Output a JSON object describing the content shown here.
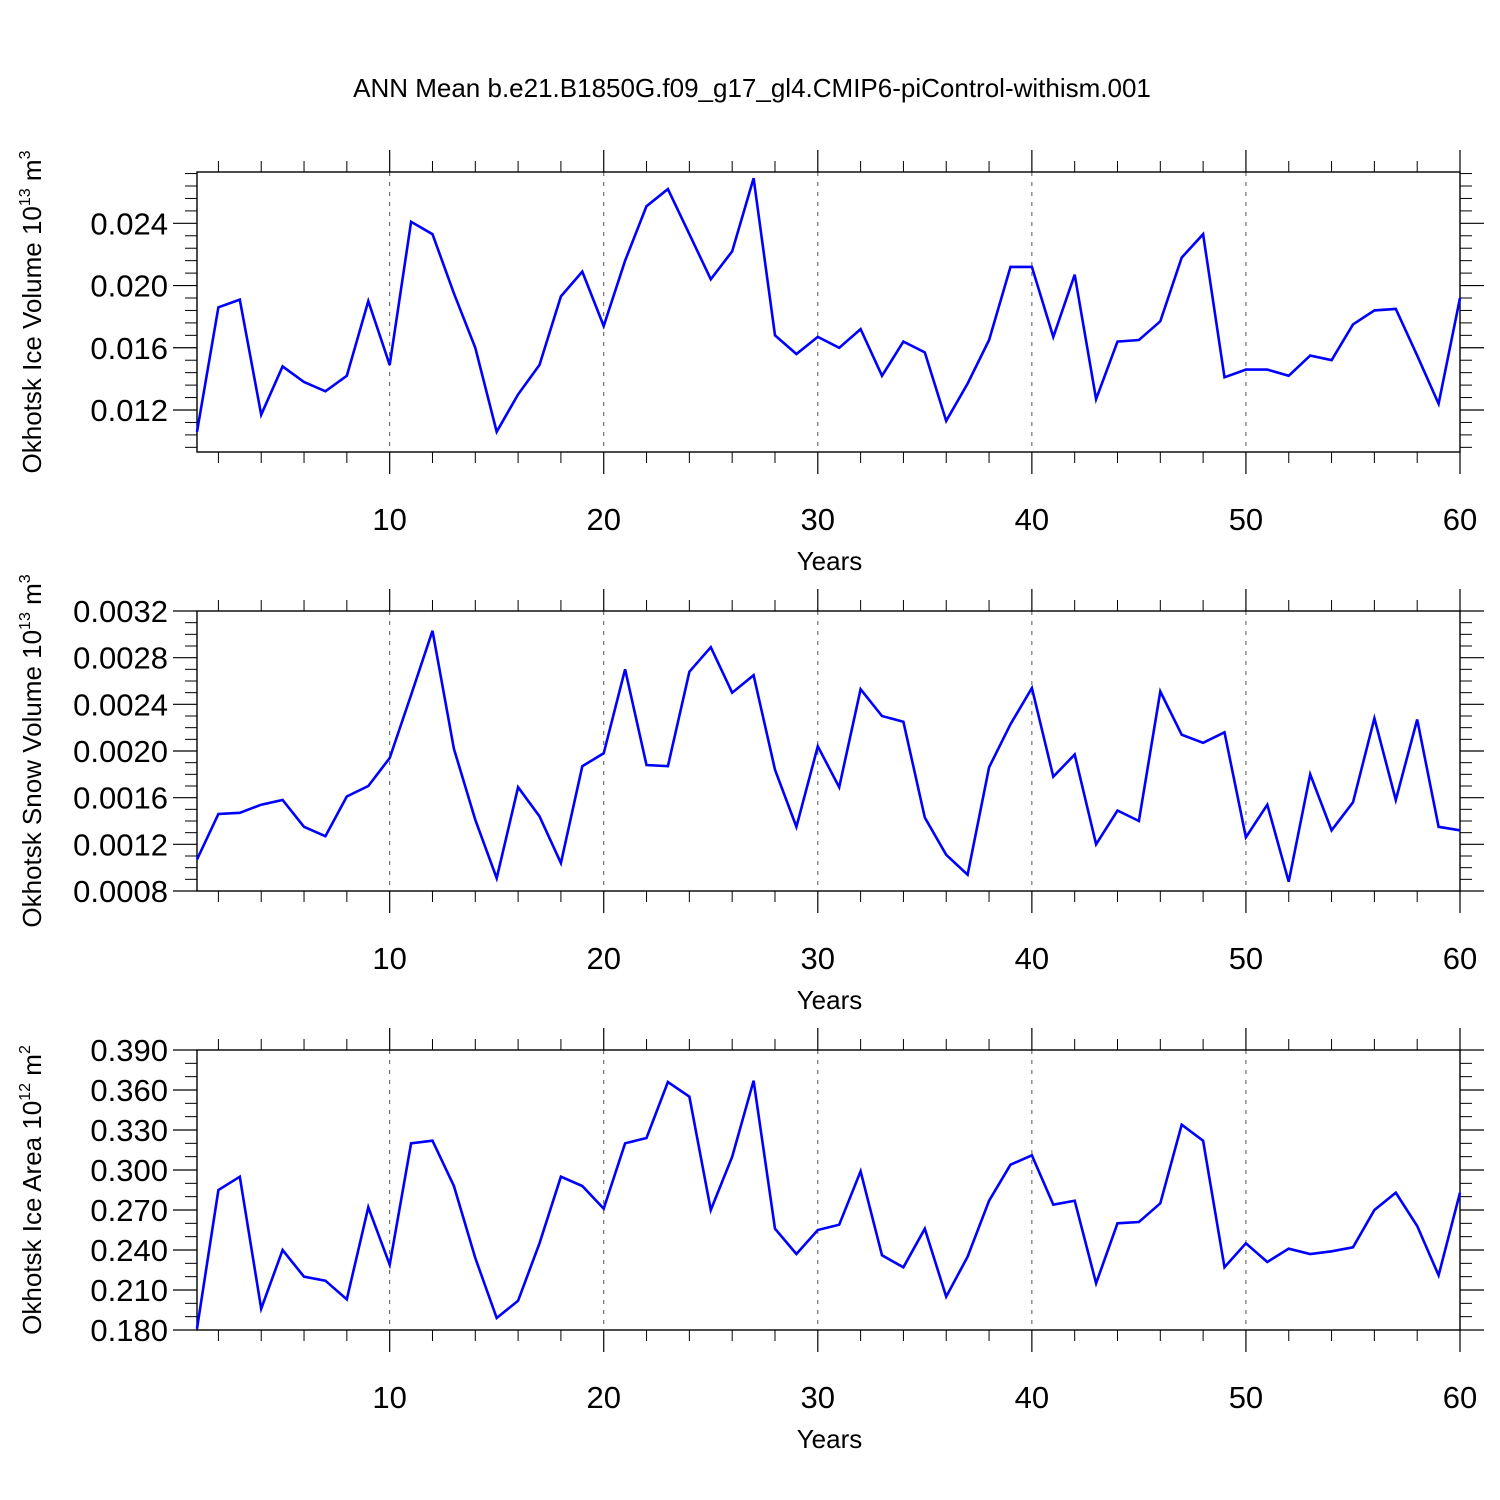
{
  "title": "ANN Mean b.e21.B1850G.f09_g17_gl4.CMIP6-piControl-withism.001",
  "style": {
    "line_color": "#0000ff",
    "axis_color": "#000000",
    "grid_color": "#555555",
    "background": "#ffffff"
  },
  "chart_data": [
    {
      "type": "line",
      "ylabel": "Okhotsk Ice Volume",
      "unit_base": "10",
      "unit_exp": "13",
      "unit_suffix": "m",
      "unit_suffix_exp": "3",
      "xlabel": "Years",
      "xlim": [
        1,
        60
      ],
      "ylim": [
        0.0093,
        0.0273
      ],
      "xticks": [
        10,
        20,
        30,
        40,
        50,
        60
      ],
      "xtick_labels": [
        "10",
        "20",
        "30",
        "40",
        "50",
        "60"
      ],
      "yticks": [
        0.012,
        0.016,
        0.02,
        0.024
      ],
      "ytick_labels": [
        "0.012",
        "0.016",
        "0.020",
        "0.024"
      ],
      "yminor_step": 0.0008,
      "grid_x": [
        10,
        20,
        30,
        40,
        50
      ],
      "x": [
        1,
        2,
        3,
        4,
        5,
        6,
        7,
        8,
        9,
        10,
        11,
        12,
        13,
        14,
        15,
        16,
        17,
        18,
        19,
        20,
        21,
        22,
        23,
        24,
        25,
        26,
        27,
        28,
        29,
        30,
        31,
        32,
        33,
        34,
        35,
        36,
        37,
        38,
        39,
        40,
        41,
        42,
        43,
        44,
        45,
        46,
        47,
        48,
        49,
        50,
        51,
        52,
        53,
        54,
        55,
        56,
        57,
        58,
        59,
        60
      ],
      "values": [
        0.0106,
        0.0186,
        0.0191,
        0.0117,
        0.0148,
        0.0138,
        0.0132,
        0.0142,
        0.019,
        0.0149,
        0.0241,
        0.0233,
        0.0195,
        0.016,
        0.0106,
        0.013,
        0.0149,
        0.0193,
        0.0209,
        0.0174,
        0.0216,
        0.0251,
        0.0262,
        0.0233,
        0.0204,
        0.0222,
        0.0269,
        0.0168,
        0.0156,
        0.0167,
        0.016,
        0.0172,
        0.0142,
        0.0164,
        0.0157,
        0.0113,
        0.0137,
        0.0165,
        0.0212,
        0.0212,
        0.0167,
        0.0207,
        0.0127,
        0.0164,
        0.0165,
        0.0177,
        0.0218,
        0.0233,
        0.0141,
        0.0146,
        0.0146,
        0.0142,
        0.0155,
        0.0152,
        0.0175,
        0.0184,
        0.0185,
        0.0155,
        0.0124,
        0.0192
      ]
    },
    {
      "type": "line",
      "ylabel": "Okhotsk Snow Volume",
      "unit_base": "10",
      "unit_exp": "13",
      "unit_suffix": "m",
      "unit_suffix_exp": "3",
      "xlabel": "Years",
      "xlim": [
        1,
        60
      ],
      "ylim": [
        0.0008,
        0.0032
      ],
      "xticks": [
        10,
        20,
        30,
        40,
        50,
        60
      ],
      "xtick_labels": [
        "10",
        "20",
        "30",
        "40",
        "50",
        "60"
      ],
      "yticks": [
        0.0008,
        0.0012,
        0.0016,
        0.002,
        0.0024,
        0.0028,
        0.0032
      ],
      "ytick_labels": [
        "0.0008",
        "0.0012",
        "0.0016",
        "0.0020",
        "0.0024",
        "0.0028",
        "0.0032"
      ],
      "yminor_step": 0.0001,
      "grid_x": [
        10,
        20,
        30,
        40,
        50
      ],
      "x": [
        1,
        2,
        3,
        4,
        5,
        6,
        7,
        8,
        9,
        10,
        11,
        12,
        13,
        14,
        15,
        16,
        17,
        18,
        19,
        20,
        21,
        22,
        23,
        24,
        25,
        26,
        27,
        28,
        29,
        30,
        31,
        32,
        33,
        34,
        35,
        36,
        37,
        38,
        39,
        40,
        41,
        42,
        43,
        44,
        45,
        46,
        47,
        48,
        49,
        50,
        51,
        52,
        53,
        54,
        55,
        56,
        57,
        58,
        59,
        60
      ],
      "values": [
        0.00107,
        0.00146,
        0.00147,
        0.00154,
        0.00158,
        0.00135,
        0.00127,
        0.00161,
        0.0017,
        0.00194,
        0.00248,
        0.00303,
        0.00202,
        0.00141,
        0.00091,
        0.00169,
        0.00144,
        0.00104,
        0.00187,
        0.00198,
        0.0027,
        0.00188,
        0.00187,
        0.00268,
        0.00289,
        0.0025,
        0.00265,
        0.00184,
        0.00135,
        0.00204,
        0.00169,
        0.00253,
        0.0023,
        0.00225,
        0.00143,
        0.00111,
        0.00094,
        0.00186,
        0.00223,
        0.00254,
        0.00178,
        0.00197,
        0.0012,
        0.00149,
        0.0014,
        0.00251,
        0.00214,
        0.00207,
        0.00216,
        0.00126,
        0.00154,
        0.00088,
        0.0018,
        0.00132,
        0.00156,
        0.00228,
        0.00158,
        0.00227,
        0.00135,
        0.00132
      ]
    },
    {
      "type": "line",
      "ylabel": "Okhotsk Ice Area",
      "unit_base": "10",
      "unit_exp": "12",
      "unit_suffix": "m",
      "unit_suffix_exp": "2",
      "xlabel": "Years",
      "xlim": [
        1,
        60
      ],
      "ylim": [
        0.18,
        0.39
      ],
      "xticks": [
        10,
        20,
        30,
        40,
        50,
        60
      ],
      "xtick_labels": [
        "10",
        "20",
        "30",
        "40",
        "50",
        "60"
      ],
      "yticks": [
        0.18,
        0.21,
        0.24,
        0.27,
        0.3,
        0.33,
        0.36,
        0.39
      ],
      "ytick_labels": [
        "0.180",
        "0.210",
        "0.240",
        "0.270",
        "0.300",
        "0.330",
        "0.360",
        "0.390"
      ],
      "yminor_step": 0.01,
      "grid_x": [
        10,
        20,
        30,
        40,
        50
      ],
      "x": [
        1,
        2,
        3,
        4,
        5,
        6,
        7,
        8,
        9,
        10,
        11,
        12,
        13,
        14,
        15,
        16,
        17,
        18,
        19,
        20,
        21,
        22,
        23,
        24,
        25,
        26,
        27,
        28,
        29,
        30,
        31,
        32,
        33,
        34,
        35,
        36,
        37,
        38,
        39,
        40,
        41,
        42,
        43,
        44,
        45,
        46,
        47,
        48,
        49,
        50,
        51,
        52,
        53,
        54,
        55,
        56,
        57,
        58,
        59,
        60
      ],
      "values": [
        0.181,
        0.285,
        0.295,
        0.196,
        0.24,
        0.22,
        0.217,
        0.203,
        0.272,
        0.229,
        0.32,
        0.322,
        0.288,
        0.234,
        0.189,
        0.202,
        0.245,
        0.295,
        0.288,
        0.271,
        0.32,
        0.324,
        0.366,
        0.355,
        0.27,
        0.31,
        0.367,
        0.256,
        0.237,
        0.255,
        0.259,
        0.299,
        0.236,
        0.227,
        0.256,
        0.205,
        0.235,
        0.277,
        0.304,
        0.311,
        0.274,
        0.277,
        0.215,
        0.26,
        0.261,
        0.275,
        0.334,
        0.322,
        0.227,
        0.245,
        0.231,
        0.241,
        0.237,
        0.239,
        0.242,
        0.27,
        0.283,
        0.258,
        0.221,
        0.283
      ]
    }
  ]
}
